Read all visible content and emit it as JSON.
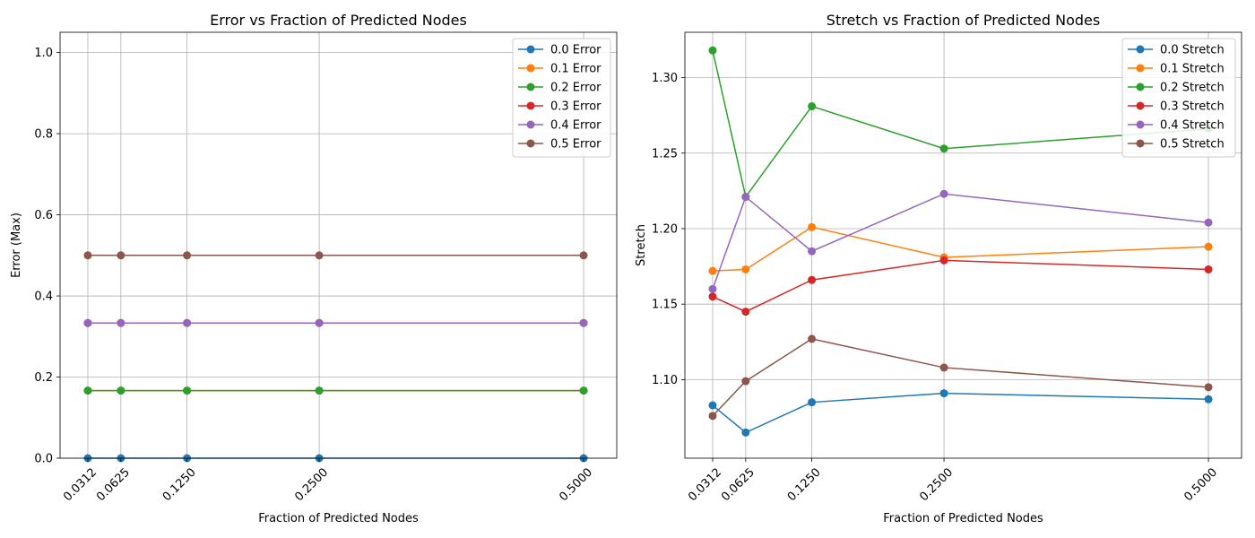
{
  "chart_data": [
    {
      "type": "line",
      "title": "Error vs Fraction of Predicted Nodes",
      "xlabel": "Fraction of Predicted Nodes",
      "ylabel": "Error (Max)",
      "x": [
        0.03125,
        0.0625,
        0.125,
        0.25,
        0.5
      ],
      "xtick_labels": [
        "0.0312",
        "0.0625",
        "0.1250",
        "0.2500",
        "0.5000"
      ],
      "ylim": [
        0,
        1.05
      ],
      "yticks": [
        0.0,
        0.2,
        0.4,
        0.6,
        0.8,
        1.0
      ],
      "ytick_labels": [
        "0.0",
        "0.2",
        "0.4",
        "0.6",
        "0.8",
        "1.0"
      ],
      "grid": true,
      "legend_position": "top-right",
      "series": [
        {
          "name": "0.0 Error",
          "color": "#1f77b4",
          "values": [
            0,
            0,
            0,
            0,
            0
          ]
        },
        {
          "name": "0.1 Error",
          "color": "#ff7f0e",
          "values": [
            0.1667,
            0.1667,
            0.1667,
            0.1667,
            0.1667
          ]
        },
        {
          "name": "0.2 Error",
          "color": "#2ca02c",
          "values": [
            0.1667,
            0.1667,
            0.1667,
            0.1667,
            0.1667
          ]
        },
        {
          "name": "0.3 Error",
          "color": "#d62728",
          "values": [
            0.3333,
            0.3333,
            0.3333,
            0.3333,
            0.3333
          ]
        },
        {
          "name": "0.4 Error",
          "color": "#9467bd",
          "values": [
            0.3333,
            0.3333,
            0.3333,
            0.3333,
            0.3333
          ]
        },
        {
          "name": "0.5 Error",
          "color": "#8c564b",
          "values": [
            0.5,
            0.5,
            0.5,
            0.5,
            0.5
          ]
        }
      ]
    },
    {
      "type": "line",
      "title": "Stretch vs Fraction of Predicted Nodes",
      "xlabel": "Fraction of Predicted Nodes",
      "ylabel": "Stretch",
      "x": [
        0.03125,
        0.0625,
        0.125,
        0.25,
        0.5
      ],
      "xtick_labels": [
        "0.0312",
        "0.0625",
        "0.1250",
        "0.2500",
        "0.5000"
      ],
      "ylim": [
        1.048,
        1.33
      ],
      "yticks": [
        1.1,
        1.15,
        1.2,
        1.25,
        1.3
      ],
      "ytick_labels": [
        "1.10",
        "1.15",
        "1.20",
        "1.25",
        "1.30"
      ],
      "grid": true,
      "legend_position": "top-right",
      "series": [
        {
          "name": "0.0 Stretch",
          "color": "#1f77b4",
          "values": [
            1.083,
            1.065,
            1.085,
            1.091,
            1.087
          ]
        },
        {
          "name": "0.1 Stretch",
          "color": "#ff7f0e",
          "values": [
            1.172,
            1.173,
            1.201,
            1.181,
            1.188
          ]
        },
        {
          "name": "0.2 Stretch",
          "color": "#2ca02c",
          "values": [
            1.318,
            1.221,
            1.281,
            1.253,
            1.266
          ]
        },
        {
          "name": "0.3 Stretch",
          "color": "#d62728",
          "values": [
            1.155,
            1.145,
            1.166,
            1.179,
            1.173
          ]
        },
        {
          "name": "0.4 Stretch",
          "color": "#9467bd",
          "values": [
            1.16,
            1.221,
            1.185,
            1.223,
            1.204
          ]
        },
        {
          "name": "0.5 Stretch",
          "color": "#8c564b",
          "values": [
            1.076,
            1.099,
            1.127,
            1.108,
            1.095
          ]
        }
      ]
    }
  ]
}
